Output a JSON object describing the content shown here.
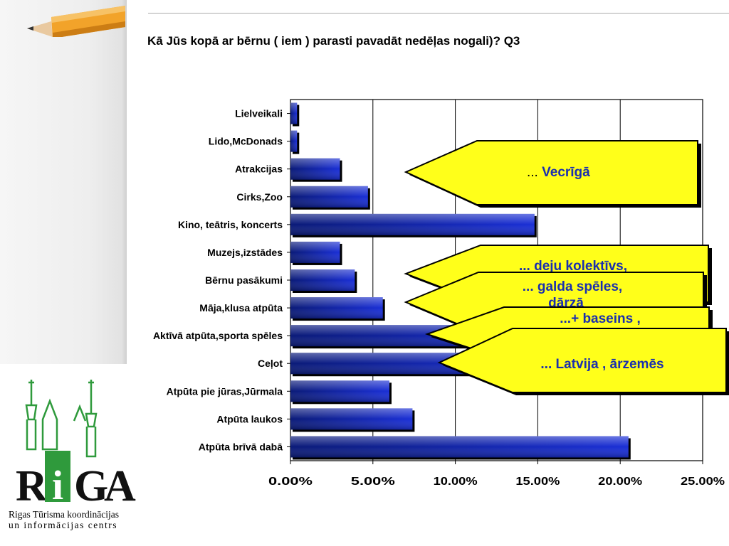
{
  "title": "Kā Jūs kopā ar bērnu ( iem ) parasti pavadāt nedēļas nogali)? Q3",
  "chart_data": {
    "type": "bar",
    "orientation": "horizontal",
    "categories": [
      "Lielveikali",
      "Lido,McDonads",
      "Atrakcijas",
      "Cirks,Zoo",
      "Kino, teātris, koncerts",
      "Muzejs,izstādes",
      "Bērnu pasākumi",
      "Māja,klusa atpūta",
      "Aktīvā atpūta,sporta spēles",
      "Ceļot",
      "Atpūta pie jūras,Jūrmala",
      "Atpūta laukos",
      "Atpūta brīvā dabā"
    ],
    "values": [
      0.4,
      0.4,
      3.0,
      4.7,
      14.8,
      3.0,
      3.9,
      5.6,
      15.5,
      14.5,
      6.0,
      7.4,
      20.5
    ],
    "xlim": [
      0,
      25
    ],
    "xticks": [
      "0.00%",
      "5.00%",
      "10.00%",
      "15.00%",
      "20.00%",
      "25.00%"
    ],
    "grid": true,
    "bar_color": "#1a2fd6"
  },
  "callouts": [
    {
      "prefix": "... ",
      "text": "Vecrīgā"
    },
    {
      "text": "... deju kolektīvs,"
    },
    {
      "text": "... galda spēles,"
    },
    {
      "text": "dārzā"
    },
    {
      "text": "...+ baseins ,"
    },
    {
      "text": "... Latvija , ārzemēs"
    }
  ],
  "logo": {
    "letters": [
      "R",
      "i",
      "G",
      "A"
    ],
    "caption_line1": "Rigas Tūrisma koordinācijas",
    "caption_line2": "un informācijas centrs"
  }
}
